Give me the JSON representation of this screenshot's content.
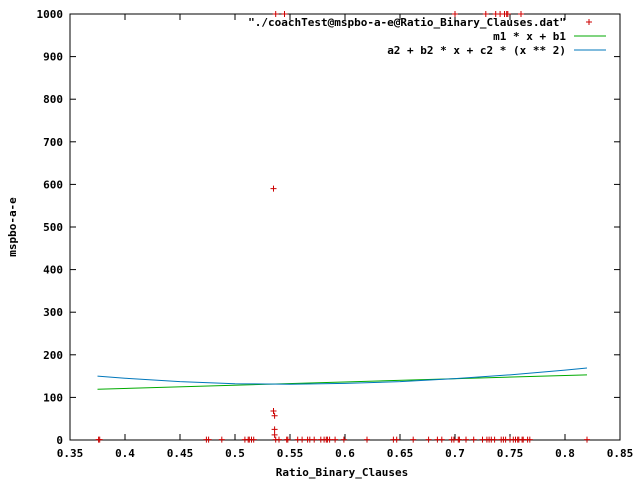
{
  "chart_data": {
    "type": "scatter",
    "xlabel": "Ratio_Binary_Clauses",
    "ylabel": "mspbo-a-e",
    "xlim": [
      0.35,
      0.85
    ],
    "ylim": [
      0,
      1000
    ],
    "x_ticks": [
      "0.35",
      "0.4",
      "0.45",
      "0.5",
      "0.55",
      "0.6",
      "0.65",
      "0.7",
      "0.75",
      "0.8",
      "0.85"
    ],
    "y_ticks": [
      "0",
      "100",
      "200",
      "300",
      "400",
      "500",
      "600",
      "700",
      "800",
      "900",
      "1000"
    ],
    "grid": false,
    "legend_position": "top-right",
    "series": [
      {
        "name": "\"./coachTest@mspbo-a-e@Ratio_Binary_Clauses.dat\"",
        "kind": "points",
        "color": "#cc0000",
        "points": [
          [
            0.376,
            1
          ],
          [
            0.377,
            1
          ],
          [
            0.474,
            1
          ],
          [
            0.476,
            1
          ],
          [
            0.488,
            1
          ],
          [
            0.509,
            1
          ],
          [
            0.512,
            1
          ],
          [
            0.513,
            1
          ],
          [
            0.515,
            1
          ],
          [
            0.517,
            1
          ],
          [
            0.535,
            590
          ],
          [
            0.535,
            68
          ],
          [
            0.536,
            57
          ],
          [
            0.536,
            25
          ],
          [
            0.536,
            12
          ],
          [
            0.537,
            1
          ],
          [
            0.537,
            1000
          ],
          [
            0.54,
            1
          ],
          [
            0.545,
            1000
          ],
          [
            0.547,
            1
          ],
          [
            0.548,
            1
          ],
          [
            0.557,
            1
          ],
          [
            0.561,
            1
          ],
          [
            0.566,
            1
          ],
          [
            0.568,
            1
          ],
          [
            0.572,
            1
          ],
          [
            0.578,
            1
          ],
          [
            0.581,
            1
          ],
          [
            0.583,
            1
          ],
          [
            0.584,
            1
          ],
          [
            0.586,
            1
          ],
          [
            0.591,
            1
          ],
          [
            0.599,
            1
          ],
          [
            0.62,
            1
          ],
          [
            0.644,
            1
          ],
          [
            0.647,
            1
          ],
          [
            0.662,
            1
          ],
          [
            0.676,
            1
          ],
          [
            0.684,
            1
          ],
          [
            0.688,
            1
          ],
          [
            0.697,
            1
          ],
          [
            0.699,
            1
          ],
          [
            0.7,
            1000
          ],
          [
            0.703,
            1
          ],
          [
            0.704,
            1
          ],
          [
            0.71,
            1
          ],
          [
            0.717,
            1
          ],
          [
            0.725,
            1
          ],
          [
            0.728,
            1000
          ],
          [
            0.729,
            1
          ],
          [
            0.731,
            1
          ],
          [
            0.733,
            1
          ],
          [
            0.736,
            1
          ],
          [
            0.737,
            1000
          ],
          [
            0.741,
            1000
          ],
          [
            0.742,
            1
          ],
          [
            0.744,
            1
          ],
          [
            0.745,
            1000
          ],
          [
            0.746,
            1
          ],
          [
            0.747,
            1000
          ],
          [
            0.748,
            1000
          ],
          [
            0.75,
            1
          ],
          [
            0.753,
            1
          ],
          [
            0.755,
            1
          ],
          [
            0.757,
            1
          ],
          [
            0.758,
            1
          ],
          [
            0.76,
            1000
          ],
          [
            0.761,
            1
          ],
          [
            0.762,
            1
          ],
          [
            0.766,
            1
          ],
          [
            0.768,
            1
          ],
          [
            0.82,
            1
          ]
        ]
      },
      {
        "name": "m1 * x + b1",
        "kind": "line",
        "color": "#00aa00",
        "x": [
          0.375,
          0.82
        ],
        "y": [
          119,
          153
        ]
      },
      {
        "name": "a2 + b2 * x + c2 * (x ** 2)",
        "kind": "line",
        "color": "#0077bb",
        "x": [
          0.375,
          0.4,
          0.45,
          0.5,
          0.55,
          0.6,
          0.65,
          0.7,
          0.75,
          0.8,
          0.82
        ],
        "y": [
          150,
          145,
          137,
          132,
          131,
          133,
          137,
          144,
          153,
          164,
          169
        ]
      }
    ]
  }
}
